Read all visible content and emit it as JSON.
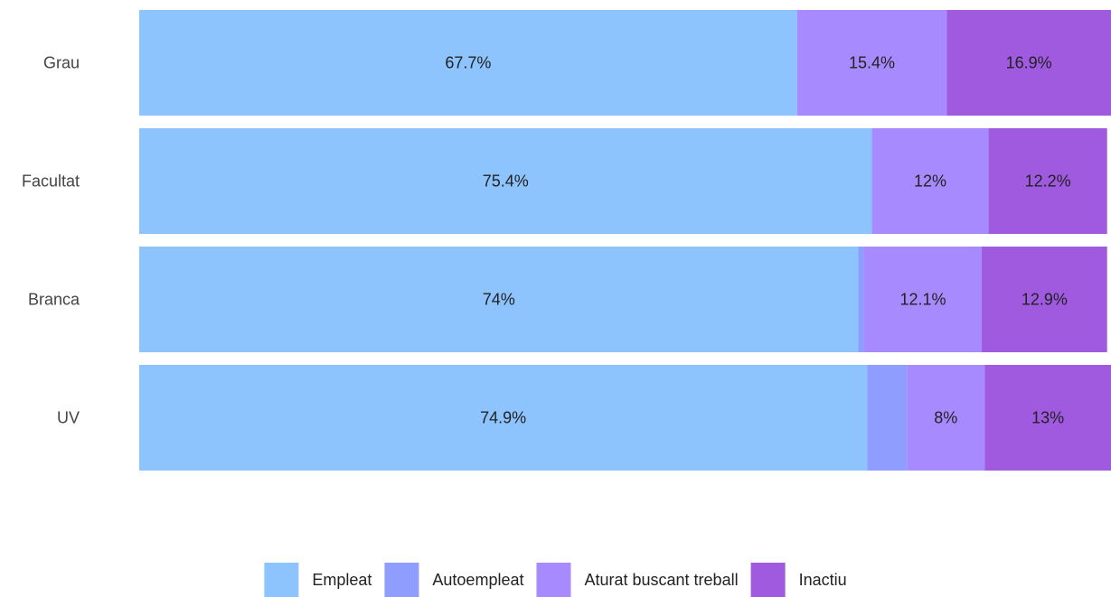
{
  "chart_data": {
    "type": "bar",
    "orientation": "horizontal",
    "stacked": true,
    "normalized": true,
    "categories": [
      "Grau",
      "Facultat",
      "Branca",
      "UV"
    ],
    "series": [
      {
        "name": "Empleat",
        "color": "#8dc4fe",
        "values": [
          67.7,
          75.4,
          74,
          74.9
        ],
        "labels": [
          "67.7%",
          "75.4%",
          "74%",
          "74.9%"
        ]
      },
      {
        "name": "Autoempleat",
        "color": "#8f9efe",
        "values": [
          0,
          0,
          0.6,
          4.1
        ],
        "labels": [
          "",
          "",
          "",
          ""
        ]
      },
      {
        "name": "Aturat buscant treball",
        "color": "#a78bfe",
        "values": [
          15.4,
          12,
          12.1,
          8
        ],
        "labels": [
          "15.4%",
          "12%",
          "12.1%",
          "8%"
        ]
      },
      {
        "name": "Inactiu",
        "color": "#a05ae0",
        "values": [
          16.9,
          12.2,
          12.9,
          13
        ],
        "labels": [
          "16.9%",
          "12.2%",
          "12.9%",
          "13%"
        ]
      }
    ],
    "xlim": [
      0,
      100
    ],
    "grid": false,
    "legend": "bottom"
  }
}
